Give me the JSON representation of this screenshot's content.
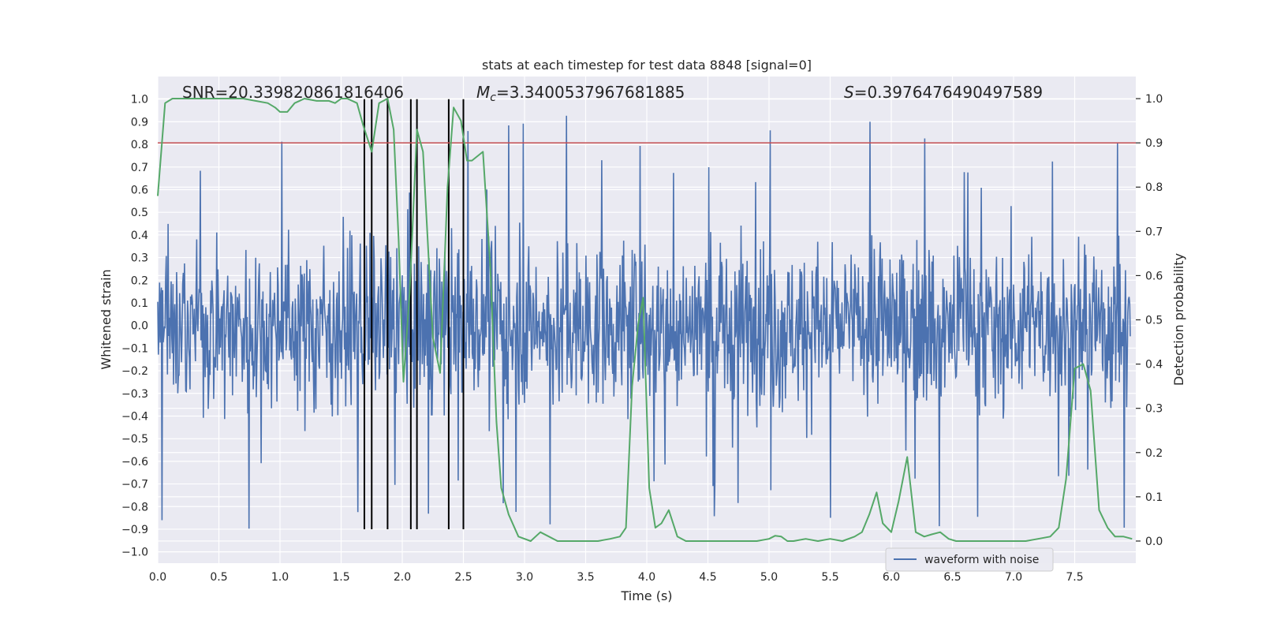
{
  "chart_data": {
    "type": "line",
    "title": "stats at each timestep for test data 8848 [signal=0]",
    "xlabel": "Time (s)",
    "ylabel": "Whitened strain",
    "y2label": "Detection probability",
    "xlim": [
      0.0,
      8.0
    ],
    "ylim": [
      -1.05,
      1.1
    ],
    "y2lim": [
      -0.05,
      1.05
    ],
    "x_ticks": [
      "0.0",
      "0.5",
      "1.0",
      "1.5",
      "2.0",
      "2.5",
      "3.0",
      "3.5",
      "4.0",
      "4.5",
      "5.0",
      "5.5",
      "6.0",
      "6.5",
      "7.0",
      "7.5"
    ],
    "y_ticks": [
      "1.0",
      "0.9",
      "0.8",
      "0.7",
      "0.6",
      "0.5",
      "0.4",
      "0.3",
      "0.2",
      "0.1",
      "0.0",
      "-0.1",
      "-0.2",
      "-0.3",
      "-0.4",
      "-0.5",
      "-0.6",
      "-0.7",
      "-0.8",
      "-0.9",
      "-1.0"
    ],
    "y2_ticks": [
      "1.0",
      "0.9",
      "0.8",
      "0.7",
      "0.6",
      "0.5",
      "0.4",
      "0.3",
      "0.2",
      "0.1",
      "0.0"
    ],
    "annotations": {
      "snr": "SNR=20.339820861816406",
      "mc_symbol": "M",
      "mc_sub": "c",
      "mc_value": "=3.3400537967681885",
      "s_symbol": "S",
      "s_value": "=0.3976476490497589"
    },
    "threshold_y2": 0.9,
    "vertical_lines_x": [
      1.69,
      1.75,
      1.88,
      2.07,
      2.12,
      2.38,
      2.5
    ],
    "legend": {
      "entry": "waveform with noise",
      "position": "lower-right"
    },
    "series": [
      {
        "name": "waveform with noise",
        "color": "#4c72b0",
        "kind": "noisy-strain",
        "envelope": 0.62,
        "peak_max": 1.0,
        "peak_min": -0.95
      },
      {
        "name": "detection probability",
        "color": "#55a868",
        "axis": "y2",
        "x": [
          0.0,
          0.06,
          0.12,
          0.2,
          0.3,
          0.4,
          0.5,
          0.6,
          0.7,
          0.8,
          0.9,
          0.96,
          1.0,
          1.06,
          1.12,
          1.2,
          1.3,
          1.4,
          1.45,
          1.5,
          1.55,
          1.63,
          1.68,
          1.75,
          1.81,
          1.88,
          1.93,
          1.97,
          2.01,
          2.06,
          2.12,
          2.17,
          2.25,
          2.31,
          2.37,
          2.42,
          2.48,
          2.53,
          2.57,
          2.66,
          2.72,
          2.77,
          2.81,
          2.87,
          2.95,
          3.05,
          3.13,
          3.2,
          3.27,
          3.33,
          3.4,
          3.5,
          3.6,
          3.7,
          3.78,
          3.83,
          3.88,
          3.93,
          3.97,
          4.02,
          4.07,
          4.12,
          4.18,
          4.25,
          4.32,
          4.4,
          4.5,
          4.6,
          4.7,
          4.8,
          4.9,
          5.0,
          5.05,
          5.1,
          5.15,
          5.2,
          5.3,
          5.4,
          5.5,
          5.6,
          5.7,
          5.76,
          5.82,
          5.88,
          5.93,
          6.0,
          6.06,
          6.13,
          6.2,
          6.27,
          6.33,
          6.4,
          6.47,
          6.53,
          6.6,
          6.7,
          6.8,
          6.9,
          7.0,
          7.1,
          7.2,
          7.3,
          7.37,
          7.43,
          7.5,
          7.57,
          7.63,
          7.7,
          7.77,
          7.83,
          7.9,
          7.97
        ],
        "y": [
          0.78,
          0.99,
          1.0,
          1.0,
          1.0,
          1.0,
          1.0,
          1.0,
          1.0,
          0.995,
          0.99,
          0.98,
          0.97,
          0.97,
          0.99,
          1.0,
          0.995,
          0.995,
          0.99,
          1.0,
          1.0,
          0.99,
          0.94,
          0.88,
          0.99,
          1.0,
          0.93,
          0.68,
          0.36,
          0.56,
          0.93,
          0.88,
          0.46,
          0.38,
          0.8,
          0.98,
          0.95,
          0.86,
          0.86,
          0.88,
          0.62,
          0.27,
          0.12,
          0.06,
          0.01,
          0.0,
          0.02,
          0.01,
          0.0,
          0.0,
          0.0,
          0.0,
          0.0,
          0.005,
          0.01,
          0.03,
          0.35,
          0.49,
          0.55,
          0.12,
          0.03,
          0.04,
          0.07,
          0.01,
          0.0,
          0.0,
          0.0,
          0.0,
          0.0,
          0.0,
          0.0,
          0.005,
          0.012,
          0.01,
          0.0,
          0.0,
          0.005,
          0.0,
          0.005,
          0.0,
          0.01,
          0.02,
          0.06,
          0.11,
          0.04,
          0.02,
          0.09,
          0.19,
          0.02,
          0.01,
          0.015,
          0.02,
          0.005,
          0.0,
          0.0,
          0.0,
          0.0,
          0.0,
          0.0,
          0.0,
          0.005,
          0.01,
          0.03,
          0.14,
          0.39,
          0.4,
          0.34,
          0.07,
          0.03,
          0.01,
          0.01,
          0.005
        ]
      }
    ]
  },
  "colors": {
    "plot_bg": "#eaeaf2",
    "grid": "#ffffff",
    "strain": "#4c72b0",
    "probability": "#55a868",
    "threshold": "#c44e52",
    "vline": "#000000",
    "text": "#262626"
  }
}
